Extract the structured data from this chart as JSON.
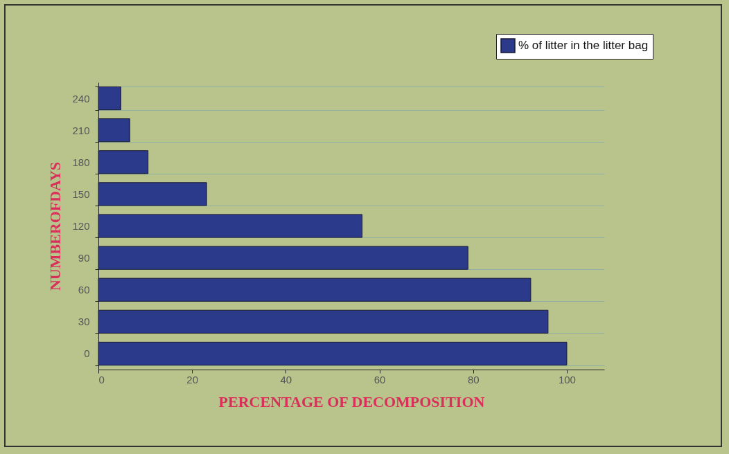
{
  "chart_data": {
    "type": "bar",
    "orientation": "horizontal",
    "xlabel": "PERCENTAGE OF DECOMPOSITION",
    "ylabel": "NUMBEROFDAYS",
    "categories": [
      "240",
      "210",
      "180",
      "150",
      "120",
      "90",
      "60",
      "30",
      "0"
    ],
    "series": [
      {
        "name": "% of litter in the litter bag",
        "color": "#2b3a8a",
        "values": [
          4.8,
          6.7,
          10.6,
          23.1,
          56.3,
          78.9,
          92.3,
          96,
          100
        ]
      }
    ],
    "xlim": [
      0,
      108
    ],
    "xticks": [
      0,
      20,
      40,
      60,
      80,
      100
    ],
    "grid": "y",
    "legend": "top right"
  }
}
